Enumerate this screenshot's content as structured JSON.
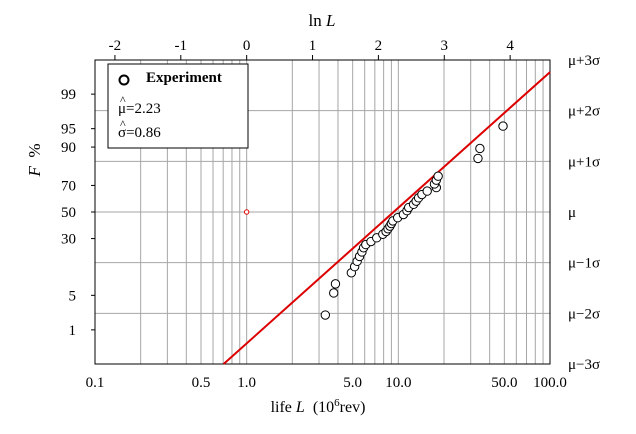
{
  "chart_data": {
    "type": "scatter",
    "title": "",
    "scale": "lognormal probability plot",
    "xlabel": {
      "prefix": "life ",
      "var": "L",
      "open": "  (10",
      "sup": "6",
      "close": "rev)"
    },
    "x_top_label": {
      "prefix": "ln ",
      "var": "L"
    },
    "ylabel": {
      "var": "F",
      "unit": "%"
    },
    "xlim": [
      0.1,
      100.0
    ],
    "x_bottom_ticks": [
      {
        "value": 0.1,
        "label": "0.1"
      },
      {
        "value": 0.5,
        "label": "0.5"
      },
      {
        "value": 1.0,
        "label": "1.0"
      },
      {
        "value": 5.0,
        "label": "5.0"
      },
      {
        "value": 10.0,
        "label": "10.0"
      },
      {
        "value": 50.0,
        "label": "50.0"
      },
      {
        "value": 100.0,
        "label": "100.0"
      }
    ],
    "x_top_ticks": [
      {
        "value": -2,
        "label": "-2"
      },
      {
        "value": -1,
        "label": "-1"
      },
      {
        "value": 0,
        "label": "0"
      },
      {
        "value": 1,
        "label": "1"
      },
      {
        "value": 2,
        "label": "2"
      },
      {
        "value": 3,
        "label": "3"
      },
      {
        "value": 4,
        "label": "4"
      }
    ],
    "ylim_sigma": [
      -3,
      3
    ],
    "y_left_ticks": [
      {
        "value": 99,
        "label": "99"
      },
      {
        "value": 95,
        "label": "95"
      },
      {
        "value": 90,
        "label": "90"
      },
      {
        "value": 70,
        "label": "70"
      },
      {
        "value": 50,
        "label": "50"
      },
      {
        "value": 30,
        "label": "30"
      },
      {
        "value": 5,
        "label": "5"
      },
      {
        "value": 1,
        "label": "1"
      }
    ],
    "y_right_ticks": [
      {
        "sigma": 3,
        "label": "μ+3σ"
      },
      {
        "sigma": 2,
        "label": "μ+2σ"
      },
      {
        "sigma": 1,
        "label": "μ+1σ"
      },
      {
        "sigma": 0,
        "label": "μ"
      },
      {
        "sigma": -1,
        "label": "μ−1σ"
      },
      {
        "sigma": -2,
        "label": "μ−2σ"
      },
      {
        "sigma": -3,
        "label": "μ−3σ"
      }
    ],
    "legend": {
      "position": "top-left",
      "series_label": "Experiment",
      "mu_symbol": "μ",
      "mu_value": "=2.23",
      "sigma_symbol": "σ",
      "sigma_value": "=0.86"
    },
    "fit": {
      "mu": 2.23,
      "sigma": 0.86,
      "color": "#dd0000"
    },
    "reference_point": {
      "x": 1.0,
      "F": 50
    },
    "series": [
      {
        "name": "Experiment",
        "marker": "open-circle",
        "points": [
          {
            "x": 3.3,
            "F": 2.1
          },
          {
            "x": 3.75,
            "F": 5.5
          },
          {
            "x": 3.85,
            "F": 7.8
          },
          {
            "x": 4.9,
            "F": 11.5
          },
          {
            "x": 5.15,
            "F": 14
          },
          {
            "x": 5.35,
            "F": 16.5
          },
          {
            "x": 5.55,
            "F": 19
          },
          {
            "x": 5.75,
            "F": 21.5
          },
          {
            "x": 5.9,
            "F": 24
          },
          {
            "x": 6.1,
            "F": 26
          },
          {
            "x": 6.6,
            "F": 28
          },
          {
            "x": 7.2,
            "F": 30.5
          },
          {
            "x": 7.9,
            "F": 33
          },
          {
            "x": 8.3,
            "F": 35
          },
          {
            "x": 8.55,
            "F": 37
          },
          {
            "x": 8.8,
            "F": 39
          },
          {
            "x": 9.0,
            "F": 41
          },
          {
            "x": 9.2,
            "F": 43
          },
          {
            "x": 9.9,
            "F": 45.5
          },
          {
            "x": 10.8,
            "F": 48
          },
          {
            "x": 11.4,
            "F": 51
          },
          {
            "x": 11.7,
            "F": 53.5
          },
          {
            "x": 12.6,
            "F": 56
          },
          {
            "x": 13.1,
            "F": 58.5
          },
          {
            "x": 13.6,
            "F": 61
          },
          {
            "x": 14.3,
            "F": 63.5
          },
          {
            "x": 15.5,
            "F": 66
          },
          {
            "x": 17.8,
            "F": 68.5
          },
          {
            "x": 17.3,
            "F": 71
          },
          {
            "x": 17.8,
            "F": 73.5
          },
          {
            "x": 18.3,
            "F": 76
          },
          {
            "x": 33.5,
            "F": 85.5
          },
          {
            "x": 34.5,
            "F": 89.5
          },
          {
            "x": 49.0,
            "F": 95.5
          }
        ]
      }
    ]
  }
}
